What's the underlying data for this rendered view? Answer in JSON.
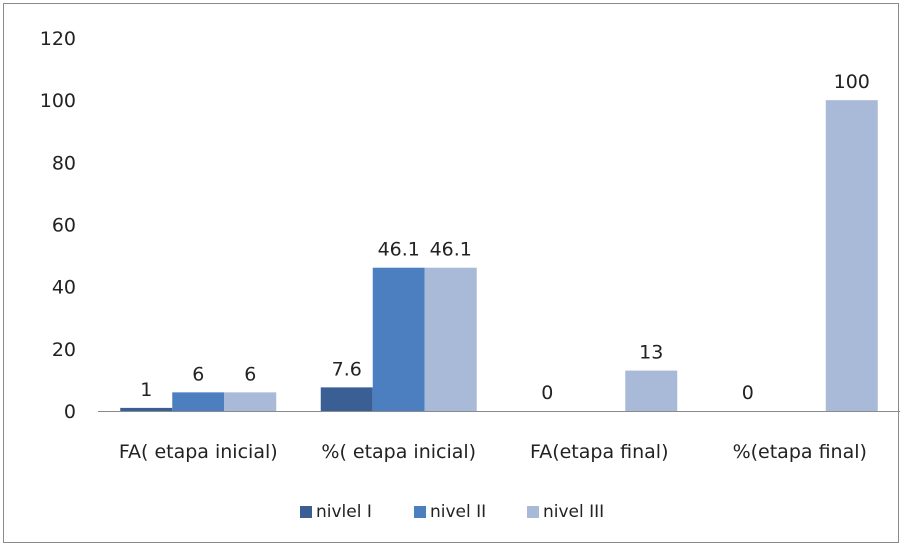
{
  "chart_data": {
    "type": "bar",
    "title": "",
    "xlabel": "",
    "ylabel": "",
    "ylim": [
      0,
      120
    ],
    "yticks": [
      0,
      20,
      40,
      60,
      80,
      100,
      120
    ],
    "grid": false,
    "legend_position": "bottom",
    "categories": [
      "FA( etapa inicial)",
      "%( etapa inicial)",
      "FA(etapa final)",
      "%(etapa final)"
    ],
    "series": [
      {
        "name": "nivlel I",
        "color": "#3a5f95",
        "values": [
          1,
          7.6,
          0,
          0
        ],
        "labels": [
          "1",
          "7.6",
          "0",
          "0"
        ]
      },
      {
        "name": "nivel II",
        "color": "#4c7fbf",
        "values": [
          6,
          46.1,
          0,
          0
        ],
        "labels": [
          "6",
          "46.1",
          "",
          ""
        ]
      },
      {
        "name": "nivel III",
        "color": "#a9bad8",
        "values": [
          6,
          46.1,
          13,
          100
        ],
        "labels": [
          "6",
          "46.1",
          "13",
          "100"
        ]
      }
    ]
  }
}
